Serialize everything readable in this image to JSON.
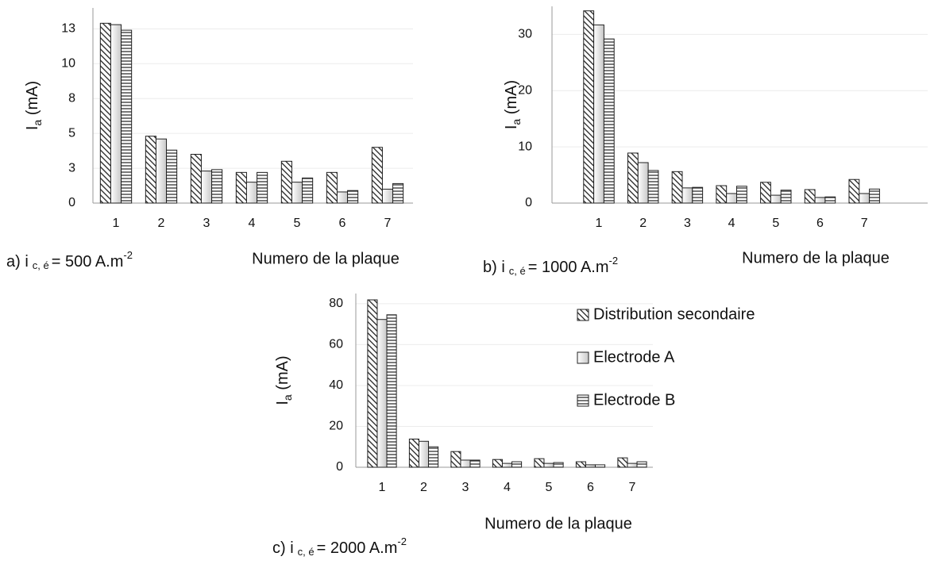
{
  "chart_data": [
    {
      "type": "bar",
      "ylabel": {
        "main": "I",
        "sub": "a",
        "rest": " (mA)"
      },
      "xlabel": "Numero de la plaque",
      "caption": {
        "prefix": "a) i",
        "sub": "c, é",
        "main": "= 500 A.m",
        "sup": "-2"
      },
      "categories": [
        "1",
        "2",
        "3",
        "4",
        "5",
        "6",
        "7"
      ],
      "series": [
        {
          "pattern": "diagonal",
          "values": [
            12.9,
            4.8,
            3.5,
            2.2,
            3.0,
            2.2,
            4.0
          ]
        },
        {
          "pattern": "gradient",
          "values": [
            12.8,
            4.6,
            2.3,
            1.5,
            1.5,
            0.8,
            1.0
          ]
        },
        {
          "pattern": "horizontal",
          "values": [
            12.4,
            3.8,
            2.4,
            2.2,
            1.8,
            0.9,
            1.4
          ]
        }
      ],
      "ylim": [
        0,
        14
      ],
      "yticks": [
        0,
        {
          "value": 2.5,
          "label": "3"
        },
        5,
        {
          "value": 7.5,
          "label": "8"
        },
        10,
        {
          "value": 12.5,
          "label": "13"
        }
      ],
      "grid": true
    },
    {
      "type": "bar",
      "ylabel": {
        "main": "I",
        "sub": "a",
        "rest": " (mA)"
      },
      "xlabel": "Numero de la plaque",
      "caption": {
        "prefix": "b) i",
        "sub": "c, é",
        "main": "= 1000 A.m",
        "sup": "-2"
      },
      "categories": [
        "1",
        "2",
        "3",
        "4",
        "5",
        "6",
        "7"
      ],
      "series": [
        {
          "pattern": "diagonal",
          "values": [
            34.2,
            8.9,
            5.6,
            3.1,
            3.7,
            2.4,
            4.2
          ]
        },
        {
          "pattern": "gradient",
          "values": [
            31.7,
            7.2,
            2.7,
            1.7,
            1.4,
            1.0,
            1.7
          ]
        },
        {
          "pattern": "horizontal",
          "values": [
            29.2,
            5.8,
            2.8,
            3.0,
            2.3,
            1.1,
            2.5
          ]
        }
      ],
      "ylim": [
        0,
        35
      ],
      "yticks": [
        0,
        10,
        20,
        30
      ],
      "grid": true
    },
    {
      "type": "bar",
      "ylabel": {
        "main": "I",
        "sub": "a",
        "rest": " (mA)"
      },
      "xlabel": "Numero de la plaque",
      "caption": {
        "prefix": "c) i",
        "sub": "c, é",
        "main": "= 2000 A.m",
        "sup": "-2"
      },
      "categories": [
        "1",
        "2",
        "3",
        "4",
        "5",
        "6",
        "7"
      ],
      "series": [
        {
          "name": "Distribution secondaire",
          "pattern": "diagonal",
          "values": [
            81.9,
            13.8,
            7.7,
            3.8,
            4.2,
            2.7,
            4.6
          ]
        },
        {
          "name": "Electrode A",
          "pattern": "gradient",
          "values": [
            72.3,
            12.7,
            3.5,
            1.9,
            1.9,
            1.2,
            1.9
          ]
        },
        {
          "name": "Electrode B",
          "pattern": "horizontal",
          "values": [
            74.6,
            10.0,
            3.5,
            2.7,
            2.3,
            1.2,
            2.7
          ]
        }
      ],
      "ylim": [
        0,
        85
      ],
      "yticks": [
        0,
        20,
        40,
        60,
        80
      ],
      "grid": true,
      "legend": "right"
    }
  ]
}
